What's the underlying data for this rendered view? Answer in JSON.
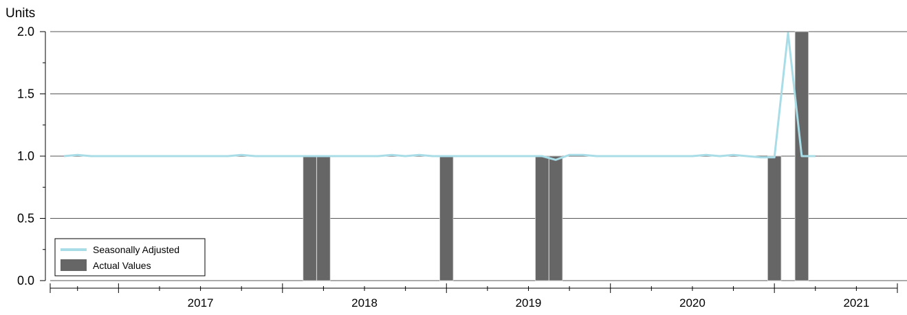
{
  "chart_data": {
    "type": "bar",
    "unit_label": "Units",
    "title": "",
    "xlabel": "",
    "ylabel": "Units",
    "grid": true,
    "ylim": [
      0,
      2.0
    ],
    "yticks": [
      "0.0",
      "0.5",
      "1.0",
      "1.5",
      "2.0"
    ],
    "xlim": [
      "2016-08",
      "2021-10"
    ],
    "year_labels": [
      "2017",
      "2018",
      "2019",
      "2020",
      "2021"
    ],
    "legend_position": "bottom-left",
    "series": [
      {
        "name": "Actual Values",
        "type": "bar",
        "color": "#666666",
        "x": [
          "2018-03",
          "2018-04",
          "2019-01",
          "2019-08",
          "2019-09",
          "2021-01",
          "2021-03"
        ],
        "values": [
          1,
          1,
          1,
          1,
          1,
          1,
          2
        ]
      },
      {
        "name": "Seasonally Adjusted",
        "type": "line",
        "color": "#a8dce6",
        "x": [
          "2016-09",
          "2016-10",
          "2016-11",
          "2016-12",
          "2017-01",
          "2017-02",
          "2017-03",
          "2017-04",
          "2017-05",
          "2017-06",
          "2017-07",
          "2017-08",
          "2017-09",
          "2017-10",
          "2017-11",
          "2017-12",
          "2018-01",
          "2018-02",
          "2018-03",
          "2018-04",
          "2018-05",
          "2018-06",
          "2018-07",
          "2018-08",
          "2018-09",
          "2018-10",
          "2018-11",
          "2018-12",
          "2019-01",
          "2019-02",
          "2019-03",
          "2019-04",
          "2019-05",
          "2019-06",
          "2019-07",
          "2019-08",
          "2019-09",
          "2019-10",
          "2019-11",
          "2019-12",
          "2020-01",
          "2020-02",
          "2020-03",
          "2020-04",
          "2020-05",
          "2020-06",
          "2020-07",
          "2020-08",
          "2020-09",
          "2020-10",
          "2020-11",
          "2020-12",
          "2021-01",
          "2021-02",
          "2021-03",
          "2021-04"
        ],
        "values": [
          1.0,
          1.01,
          1.0,
          1.0,
          1.0,
          1.0,
          1.0,
          1.0,
          1.0,
          1.0,
          1.0,
          1.0,
          1.0,
          1.01,
          1.0,
          1.0,
          1.0,
          1.0,
          1.0,
          1.0,
          1.0,
          1.0,
          1.0,
          1.0,
          1.01,
          1.0,
          1.01,
          1.0,
          1.0,
          1.0,
          1.0,
          1.0,
          1.0,
          1.0,
          1.0,
          1.0,
          0.97,
          1.01,
          1.01,
          1.0,
          1.0,
          1.0,
          1.0,
          1.0,
          1.0,
          1.0,
          1.0,
          1.01,
          1.0,
          1.01,
          1.0,
          0.99,
          0.99,
          1.99,
          1.0,
          1.0
        ]
      }
    ]
  }
}
